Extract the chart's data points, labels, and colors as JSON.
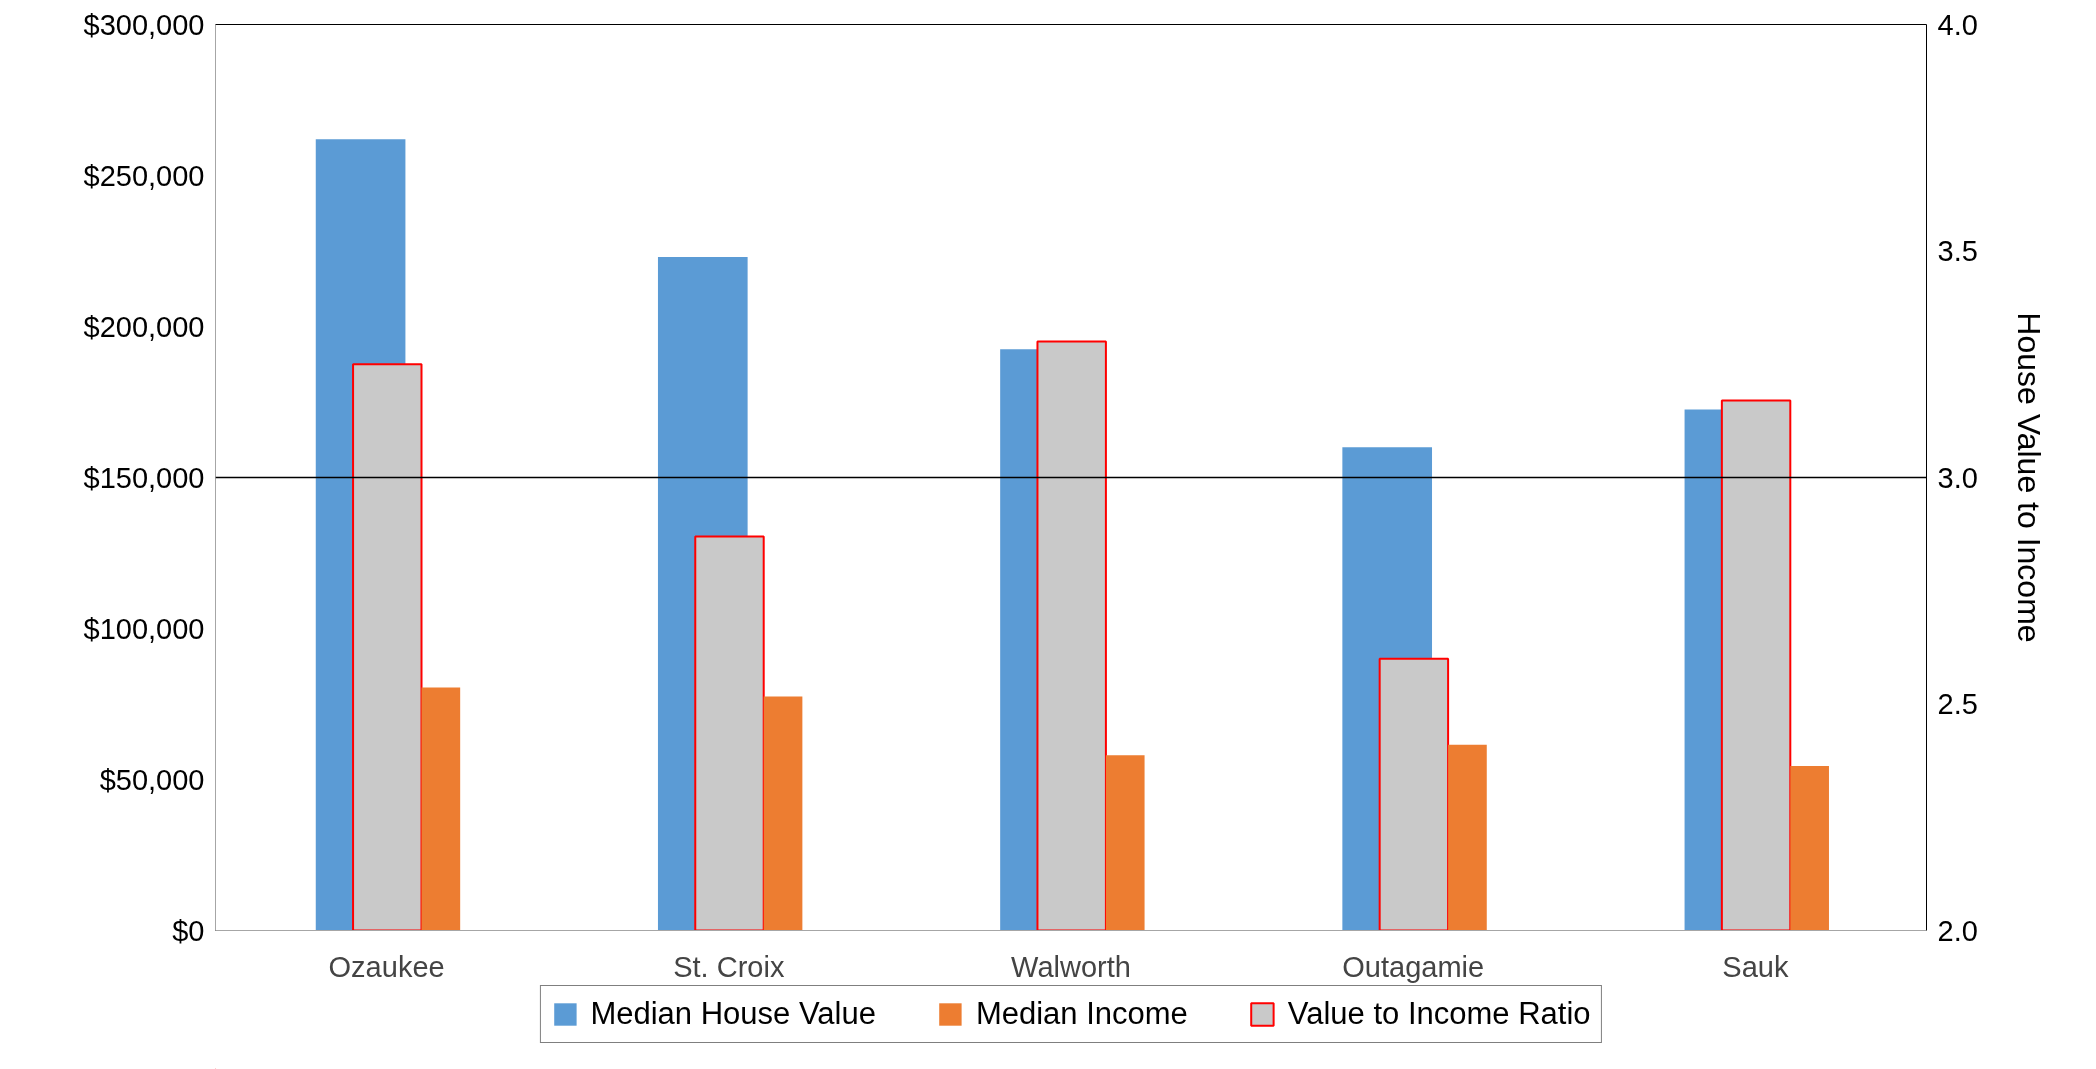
{
  "chart_data": {
    "type": "bar",
    "categories": [
      "Ozaukee",
      "St. Croix",
      "Walworth",
      "Outagamie",
      "Sauk"
    ],
    "series": [
      {
        "name": "Median House Value",
        "color": "#5b9bd5",
        "values": [
          262000,
          223000,
          192500,
          160000,
          172500
        ]
      },
      {
        "name": "Median Income",
        "color": "#ed7d31",
        "values": [
          80500,
          77500,
          58000,
          61500,
          54500
        ]
      },
      {
        "name": "Value to Income Ratio",
        "color": "#c9c9c9",
        "axis": "y2",
        "values": [
          3.25,
          2.87,
          3.3,
          2.6,
          3.17
        ]
      }
    ],
    "y2label": "House Value to Income",
    "ylim": [
      0,
      300000
    ],
    "yticks": [
      {
        "value": 0,
        "label": "$0"
      },
      {
        "value": 50000,
        "label": "$50,000"
      },
      {
        "value": 100000,
        "label": "$100,000"
      },
      {
        "value": 150000,
        "label": "$150,000"
      },
      {
        "value": 200000,
        "label": "$200,000"
      },
      {
        "value": 250000,
        "label": "$250,000"
      },
      {
        "value": 300000,
        "label": "$300,000"
      }
    ],
    "y2lim": [
      2.0,
      4.0
    ],
    "y2ticks": [
      {
        "value": 2.0,
        "label": "2.0"
      },
      {
        "value": 2.5,
        "label": "2.5"
      },
      {
        "value": 3.5,
        "label": "3.5"
      },
      {
        "value": 4.0,
        "label": "4.0"
      }
    ],
    "ref_lines": [
      {
        "axis": "y2",
        "value": 3.0,
        "label": "3.0",
        "color": "#000000"
      }
    ],
    "grid": false,
    "legend": "bottom"
  }
}
